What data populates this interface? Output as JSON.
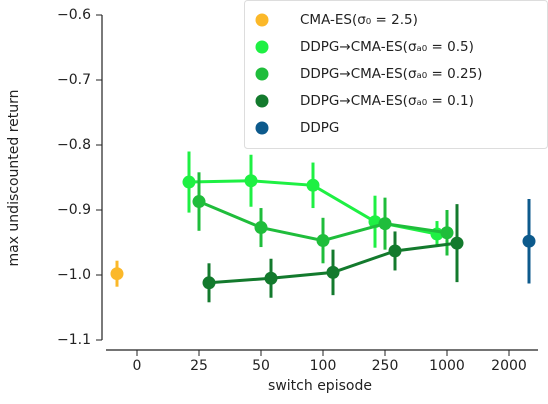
{
  "chart_data": {
    "type": "line",
    "x_label": "switch episode",
    "y_label": "max undiscounted return",
    "categories": [
      "0",
      "25",
      "50",
      "100",
      "250",
      "1000",
      "2000"
    ],
    "ylim": [
      -1.1,
      -0.6
    ],
    "yticks": [
      {
        "value": -1.1,
        "label": "−1.1"
      },
      {
        "value": -1.0,
        "label": "−1.0"
      },
      {
        "value": -0.9,
        "label": "−0.9"
      },
      {
        "value": -0.8,
        "label": "−0.8"
      },
      {
        "value": -0.7,
        "label": "−0.7"
      },
      {
        "value": -0.6,
        "label": "−0.6"
      }
    ],
    "legend": "upper right",
    "series": [
      {
        "name": "CMA-ES(σ₀ = 2.5)",
        "color": "#fbb829",
        "values": [
          -0.998,
          null,
          null,
          null,
          null,
          null,
          null
        ],
        "errors": [
          0.02,
          null,
          null,
          null,
          null,
          null,
          null
        ]
      },
      {
        "name": "DDPG→CMA-ES(σₐ₀ = 0.5)",
        "color": "#1ef043",
        "values": [
          null,
          -0.857,
          -0.855,
          -0.862,
          -0.918,
          -0.937,
          null
        ],
        "errors": [
          null,
          0.047,
          0.04,
          0.035,
          0.04,
          0.02,
          null
        ]
      },
      {
        "name": "DDPG→CMA-ES(σₐ₀ = 0.25)",
        "color": "#1fbd3b",
        "values": [
          null,
          -0.887,
          -0.927,
          -0.947,
          -0.921,
          -0.935,
          null
        ],
        "errors": [
          null,
          0.045,
          0.03,
          0.035,
          0.04,
          0.035,
          null
        ]
      },
      {
        "name": "DDPG→CMA-ES(σₐ₀ = 0.1)",
        "color": "#137a2d",
        "values": [
          null,
          -1.012,
          -1.005,
          -0.996,
          -0.963,
          -0.951,
          null
        ],
        "errors": [
          null,
          0.03,
          0.03,
          0.035,
          0.03,
          0.06,
          null
        ]
      },
      {
        "name": "DDPG",
        "color": "#0d5a8c",
        "values": [
          null,
          null,
          null,
          null,
          null,
          null,
          -0.948
        ],
        "errors": [
          null,
          null,
          null,
          null,
          null,
          null,
          0.065
        ]
      }
    ]
  }
}
